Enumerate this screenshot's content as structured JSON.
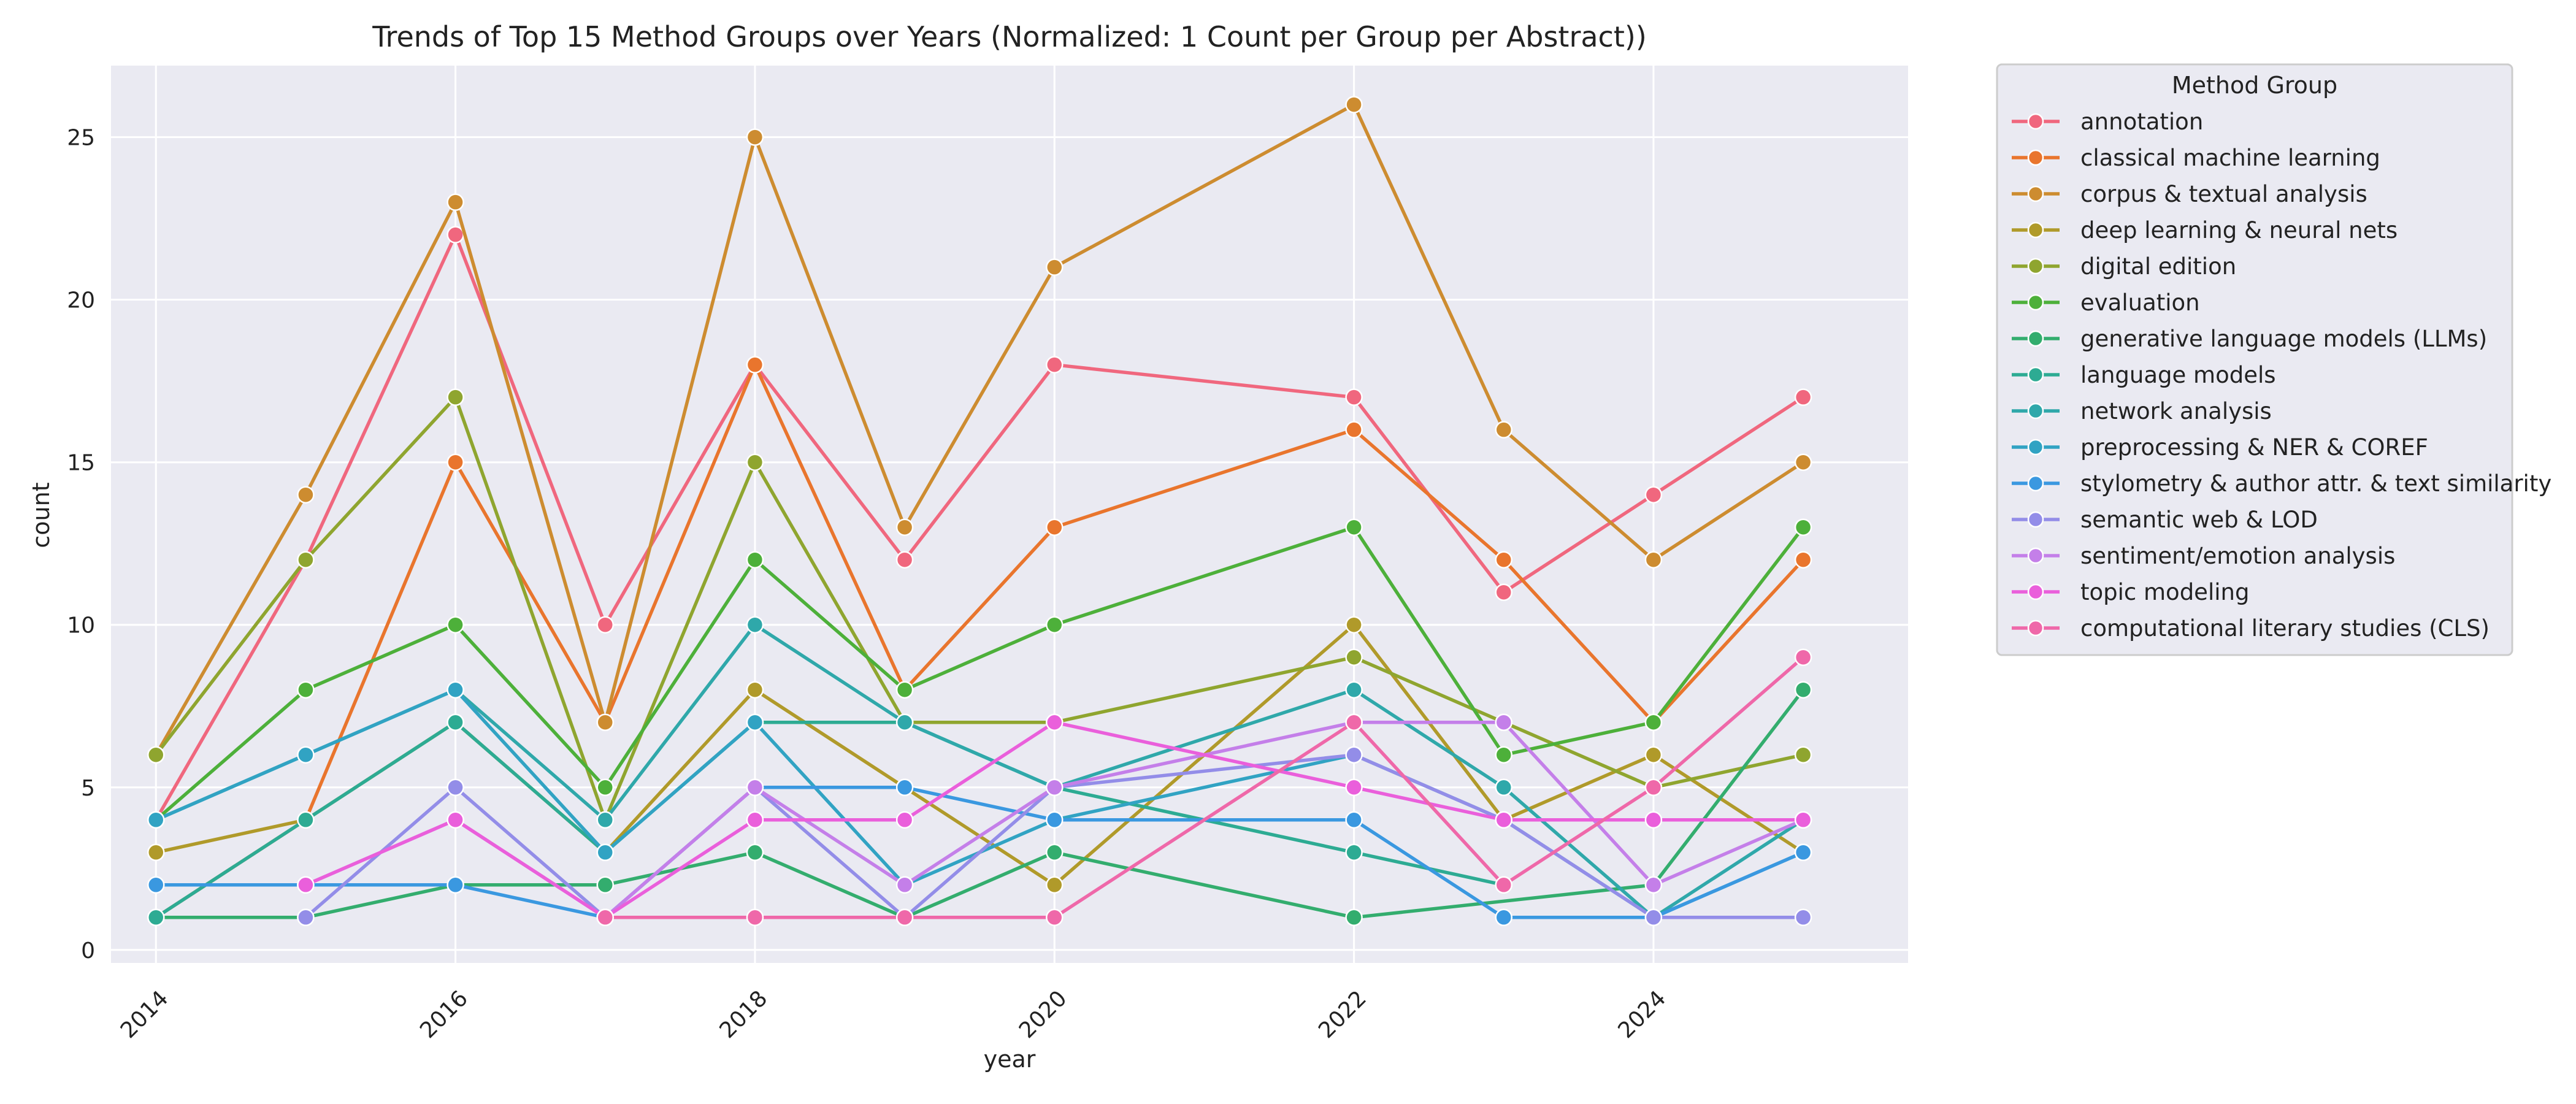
{
  "chart_data": {
    "type": "line",
    "title": "Trends of Top 15 Method Groups over Years (Normalized: 1 Count per Group per Abstract))",
    "xlabel": "year",
    "ylabel": "count",
    "x": [
      2014,
      2015,
      2016,
      2017,
      2018,
      2019,
      2020,
      2022,
      2023,
      2024,
      2025
    ],
    "xlim": [
      2013.7,
      2025.7
    ],
    "ylim": [
      -0.4,
      27.2
    ],
    "x_ticks": [
      2014,
      2016,
      2018,
      2020,
      2022,
      2024
    ],
    "y_ticks": [
      0,
      5,
      10,
      15,
      20,
      25
    ],
    "grid": true,
    "legend_title": "Method Group",
    "legend_position": "outside-right",
    "series": [
      {
        "name": "annotation",
        "color": "#f0677e",
        "values": [
          4,
          12,
          22,
          10,
          18,
          12,
          18,
          17,
          11,
          14,
          17
        ]
      },
      {
        "name": "classical machine learning",
        "color": "#e9752d",
        "values": [
          1,
          4,
          15,
          7,
          18,
          8,
          13,
          16,
          12,
          7,
          12
        ]
      },
      {
        "name": "corpus & textual analysis",
        "color": "#cd8c30",
        "values": [
          6,
          14,
          23,
          7,
          25,
          13,
          21,
          26,
          16,
          12,
          15
        ]
      },
      {
        "name": "deep learning & neural nets",
        "color": "#b09a2a",
        "values": [
          3,
          4,
          7,
          3,
          8,
          5,
          2,
          10,
          4,
          6,
          3
        ]
      },
      {
        "name": "digital edition",
        "color": "#8fa52f",
        "values": [
          6,
          12,
          17,
          4,
          15,
          7,
          7,
          9,
          7,
          5,
          6
        ]
      },
      {
        "name": "evaluation",
        "color": "#4db03a",
        "values": [
          4,
          8,
          10,
          5,
          12,
          8,
          10,
          13,
          6,
          7,
          13
        ]
      },
      {
        "name": "generative language models (LLMs)",
        "color": "#33ad6e",
        "values": [
          1,
          1,
          2,
          2,
          3,
          1,
          3,
          1,
          null,
          2,
          8
        ]
      },
      {
        "name": "language models",
        "color": "#2dab93",
        "values": [
          1,
          4,
          7,
          3,
          7,
          7,
          5,
          3,
          2,
          null,
          null
        ]
      },
      {
        "name": "network analysis",
        "color": "#2fa8aa",
        "values": [
          4,
          null,
          8,
          4,
          10,
          7,
          5,
          8,
          5,
          1,
          4
        ]
      },
      {
        "name": "preprocessing & NER & COREF",
        "color": "#31a3c3",
        "values": [
          4,
          6,
          8,
          3,
          7,
          2,
          4,
          6,
          4,
          1,
          3
        ]
      },
      {
        "name": "stylometry & author attr. & text similarity",
        "color": "#3a98e0",
        "values": [
          2,
          2,
          2,
          1,
          5,
          5,
          4,
          4,
          1,
          1,
          3
        ]
      },
      {
        "name": "semantic web & LOD",
        "color": "#938de8",
        "values": [
          null,
          1,
          5,
          1,
          5,
          1,
          5,
          6,
          4,
          1,
          1
        ]
      },
      {
        "name": "sentiment/emotion analysis",
        "color": "#c47fe9",
        "values": [
          null,
          2,
          4,
          1,
          5,
          2,
          5,
          7,
          7,
          2,
          4
        ]
      },
      {
        "name": "topic modeling",
        "color": "#ea5fdb",
        "values": [
          null,
          2,
          4,
          1,
          4,
          4,
          7,
          5,
          4,
          4,
          4
        ]
      },
      {
        "name": "computational literary studies (CLS)",
        "color": "#ef68a9",
        "values": [
          null,
          null,
          null,
          1,
          1,
          1,
          1,
          7,
          2,
          5,
          9
        ]
      }
    ]
  }
}
